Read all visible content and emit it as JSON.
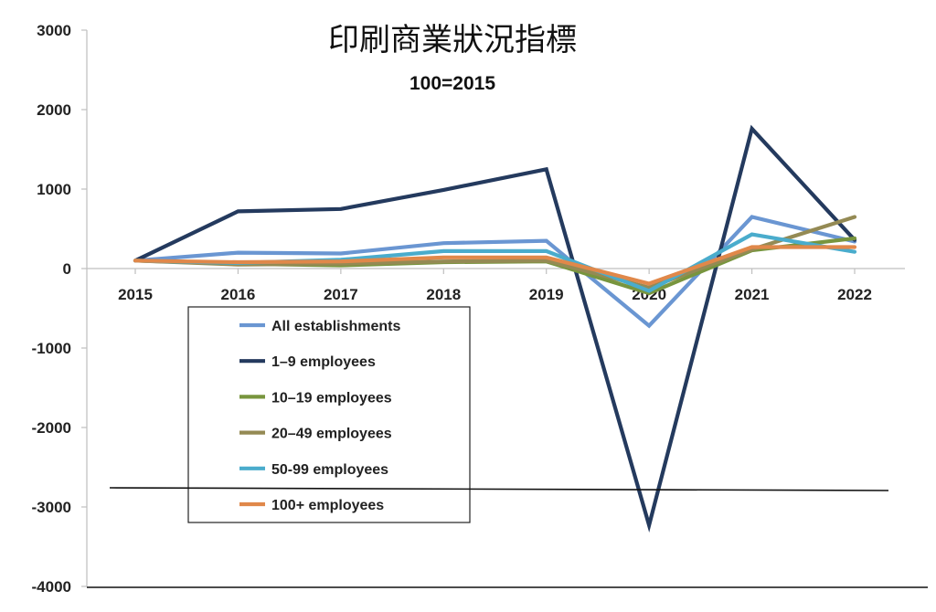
{
  "chart_data": {
    "type": "line",
    "title": "印刷商業狀況指標",
    "subtitle": "100=2015",
    "xlabel": "",
    "ylabel": "",
    "categories": [
      "2015",
      "2016",
      "2017",
      "2018",
      "2019",
      "2020",
      "2021",
      "2022"
    ],
    "ylim": [
      -4000,
      3000
    ],
    "yticks": [
      3000,
      2000,
      1000,
      0,
      -1000,
      -2000,
      -3000,
      -4000
    ],
    "grid": false,
    "legend_position": "bottom-left inside plot",
    "series": [
      {
        "name": "All establishments",
        "color": "#6a96d2",
        "values": [
          100,
          200,
          190,
          320,
          350,
          -720,
          650,
          340
        ]
      },
      {
        "name": "1–9 employees",
        "color": "#243a5e",
        "values": [
          100,
          720,
          750,
          990,
          1250,
          -3230,
          1760,
          360
        ]
      },
      {
        "name": "10–19 employees",
        "color": "#78953e",
        "values": [
          100,
          60,
          40,
          80,
          90,
          -310,
          230,
          380
        ]
      },
      {
        "name": "20–49 employees",
        "color": "#948a54",
        "values": [
          100,
          50,
          60,
          90,
          100,
          -240,
          240,
          650
        ]
      },
      {
        "name": "50-99 employees",
        "color": "#4aaccc",
        "values": [
          100,
          70,
          110,
          220,
          220,
          -280,
          430,
          210
        ]
      },
      {
        "name": "100+ employees",
        "color": "#e0884a",
        "values": [
          100,
          80,
          90,
          140,
          140,
          -190,
          270,
          270
        ]
      }
    ]
  }
}
